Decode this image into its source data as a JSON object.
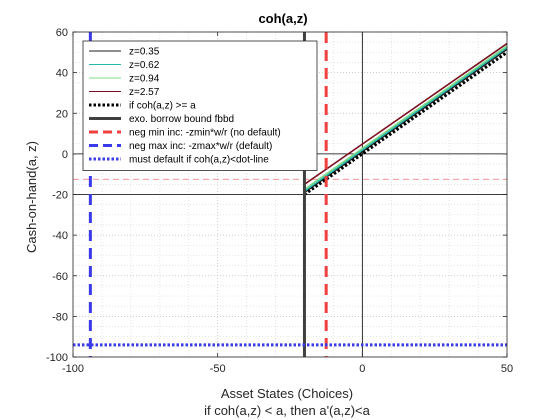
{
  "chart_data": {
    "type": "line",
    "title": "coh(a,z)",
    "xlabel": "Asset States (Choices)",
    "xlabel2": "if coh(a,z) < a, then a'(a,z)<a",
    "ylabel": "Cash-on-hand(a,  z)",
    "xlim": [
      -100,
      50
    ],
    "ylim": [
      -100,
      60
    ],
    "xticks": [
      -100,
      -50,
      0,
      50
    ],
    "yticks": [
      -100,
      -80,
      -60,
      -40,
      -20,
      0,
      20,
      40,
      60
    ],
    "xtick_labels": [
      "-100",
      "-50",
      "0",
      "50"
    ],
    "ytick_labels": [
      "-100",
      "-80",
      "-60",
      "-40",
      "-20",
      "0",
      "20",
      "40",
      "60"
    ],
    "grid": "minor dotted",
    "legend_position": "top-left",
    "series": [
      {
        "name": "z=0.35",
        "color": "#1f1f1f",
        "style": "solid",
        "x": [
          -20,
          50
        ],
        "y": [
          -19.0,
          51.5
        ]
      },
      {
        "name": "z=0.62",
        "color": "#22b8b0",
        "style": "solid",
        "x": [
          -20,
          50
        ],
        "y": [
          -18.3,
          52.3
        ]
      },
      {
        "name": "z=0.94",
        "color": "#7ed98a",
        "style": "solid",
        "x": [
          -20,
          50
        ],
        "y": [
          -17.5,
          53.1
        ]
      },
      {
        "name": "z=2.57",
        "color": "#7a1020",
        "style": "solid",
        "x": [
          -20,
          50
        ],
        "y": [
          -15.0,
          54.3
        ]
      },
      {
        "name": "if coh(a,z) >= a",
        "color": "#000000",
        "style": "dotted",
        "x": [
          -20,
          50
        ],
        "y": [
          -20,
          50
        ]
      }
    ],
    "reference_lines": [
      {
        "name": "exo. borrow bound fbbd",
        "orientation": "vertical",
        "value": -20,
        "color": "#404040",
        "style": "solid"
      },
      {
        "name": "neg min inc: -zmin*w/r (no default)",
        "orientation": "vertical",
        "value": -12.5,
        "color": "#f04040",
        "style": "dashed"
      },
      {
        "name": "neg max inc: -zmax*w/r (default)",
        "orientation": "vertical",
        "value": -94,
        "color": "#3a3ae8",
        "style": "dashed"
      },
      {
        "name": "must default if coh(a,z)<dot-line",
        "orientation": "horizontal",
        "value": -94,
        "color": "#3a3ae8",
        "style": "dotted"
      }
    ],
    "extra_lines": [
      {
        "orientation": "horizontal",
        "value": -12.5,
        "color": "#f07070",
        "style": "thin-dashed"
      },
      {
        "orientation": "horizontal",
        "value": 0,
        "color": "#000000",
        "style": "thin"
      },
      {
        "orientation": "horizontal",
        "value": -20,
        "color": "#000000",
        "style": "thin"
      },
      {
        "orientation": "vertical",
        "value": 0,
        "color": "#000000",
        "style": "thin"
      }
    ]
  }
}
